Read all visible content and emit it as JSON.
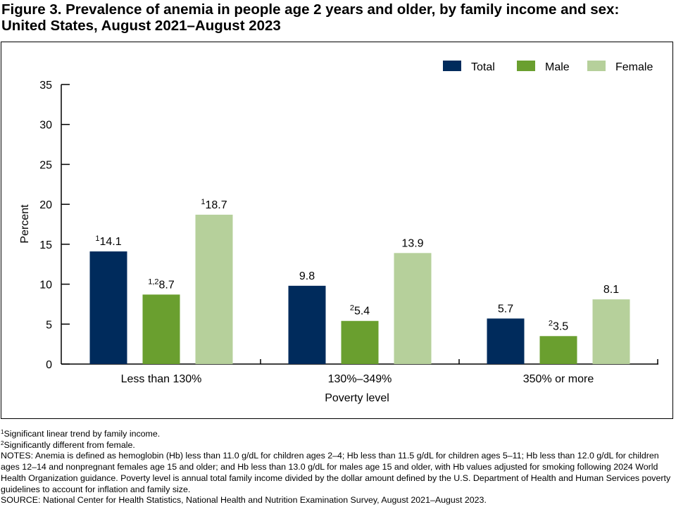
{
  "title_line1": "Figure 3. Prevalence of anemia in people age 2 years and older, by family income and sex:",
  "title_line2": "United States, August 2021–August 2023",
  "chart_data": {
    "type": "bar",
    "categories": [
      "Less than 130%",
      "130%–349%",
      "350% or more"
    ],
    "series": [
      {
        "name": "Total",
        "color": "#002b5c",
        "values": [
          14.1,
          9.8,
          5.7
        ],
        "labels": [
          {
            "sup": "1",
            "text": "14.1"
          },
          {
            "sup": "",
            "text": "9.8"
          },
          {
            "sup": "",
            "text": "5.7"
          }
        ]
      },
      {
        "name": "Male",
        "color": "#6a9f2f",
        "values": [
          8.7,
          5.4,
          3.5
        ],
        "labels": [
          {
            "sup": "1,2",
            "text": "8.7"
          },
          {
            "sup": "2",
            "text": "5.4"
          },
          {
            "sup": "2",
            "text": "3.5"
          }
        ]
      },
      {
        "name": "Female",
        "color": "#b6d09b",
        "values": [
          18.7,
          13.9,
          8.1
        ],
        "labels": [
          {
            "sup": "1",
            "text": "18.7"
          },
          {
            "sup": "",
            "text": "13.9"
          },
          {
            "sup": "",
            "text": "8.1"
          }
        ]
      }
    ],
    "xlabel": "Poverty level",
    "ylabel": "Percent",
    "ylim": [
      0,
      35
    ],
    "yticks": [
      0,
      5,
      10,
      15,
      20,
      25,
      30,
      35
    ],
    "grid": false,
    "legend_position": "top-right"
  },
  "footnotes": {
    "f1_sup": "1",
    "f1": "Significant linear trend by family income.",
    "f2_sup": "2",
    "f2": "Significantly different from female.",
    "notes": "NOTES: Anemia is defined as hemoglobin (Hb) less than 11.0 g/dL for children ages 2–4; Hb less than 11.5 g/dL for children ages 5–11; Hb less than 12.0 g/dL for children ages 12–14 and nonpregnant females age 15 and older; and Hb less than 13.0 g/dL for males age 15 and older, with Hb values adjusted for smoking following 2024 World Health Organization guidance. Poverty level is annual total family income divided by the dollar amount defined by the U.S. Department of Health and Human Services poverty guidelines to account for inflation and family size.",
    "source": "SOURCE: National Center for Health Statistics, National Health and Nutrition Examination Survey, August 2021–August 2023."
  }
}
